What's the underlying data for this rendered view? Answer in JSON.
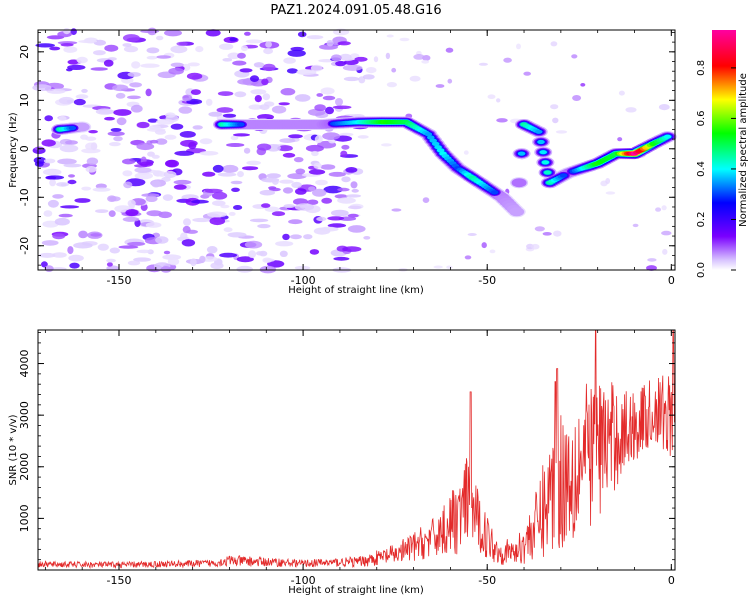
{
  "title": "PAZ1.2024.091.05.48.G16",
  "chart_data": [
    {
      "type": "heatmap",
      "xlabel": "Height of straight line (km)",
      "ylabel": "Frequency (Hz)",
      "xlim": [
        -172,
        1
      ],
      "ylim": [
        -25,
        24.5
      ],
      "xticks": [
        -150,
        -100,
        -50,
        0
      ],
      "yticks": [
        -20,
        -10,
        0,
        10,
        20
      ],
      "colorbar": {
        "label": "Normalized spectral amplitude",
        "range": [
          0.0,
          0.95
        ],
        "ticks": [
          0.0,
          0.2,
          0.4,
          0.6,
          0.8
        ],
        "colormap": [
          "#ffffff",
          "#7a00ff",
          "#0000ff",
          "#00ffff",
          "#00ff00",
          "#ffff00",
          "#ff0000",
          "#ff00ff"
        ]
      },
      "ridge": [
        {
          "x": -166,
          "y": 4,
          "v": 0.45
        },
        {
          "x": -160,
          "y": 4.5,
          "v": 0.2
        },
        {
          "x": -122,
          "y": 5,
          "v": 0.45
        },
        {
          "x": -115,
          "y": 5,
          "v": 0.25
        },
        {
          "x": -105,
          "y": 5,
          "v": 0.25
        },
        {
          "x": -95,
          "y": 5,
          "v": 0.25
        },
        {
          "x": -85,
          "y": 5.5,
          "v": 0.4
        },
        {
          "x": -78,
          "y": 5.5,
          "v": 0.55
        },
        {
          "x": -72,
          "y": 5.5,
          "v": 0.5
        },
        {
          "x": -66,
          "y": 3,
          "v": 0.35
        },
        {
          "x": -62,
          "y": -1,
          "v": 0.4
        },
        {
          "x": -58,
          "y": -4,
          "v": 0.3
        },
        {
          "x": -54,
          "y": -6,
          "v": 0.45
        },
        {
          "x": -50,
          "y": -8,
          "v": 0.35
        },
        {
          "x": -46,
          "y": -10,
          "v": 0.25
        },
        {
          "x": -42,
          "y": -13,
          "v": 0.2
        },
        {
          "x": -40,
          "y": 5,
          "v": 0.45
        },
        {
          "x": -36,
          "y": 3.5,
          "v": 0.35
        },
        {
          "x": -33,
          "y": -7,
          "v": 0.45
        },
        {
          "x": -28,
          "y": -5,
          "v": 0.25
        },
        {
          "x": -20,
          "y": -3,
          "v": 0.55
        },
        {
          "x": -15,
          "y": -1,
          "v": 0.5
        },
        {
          "x": -10,
          "y": -1,
          "v": 0.95
        },
        {
          "x": -5,
          "y": 1,
          "v": 0.55
        },
        {
          "x": -1,
          "y": 2.5,
          "v": 0.4
        }
      ]
    },
    {
      "type": "line",
      "xlabel": "Height of straight line (km)",
      "ylabel": "SNR (10 * v/v)",
      "xlim": [
        -172,
        1
      ],
      "ylim": [
        0,
        4650
      ],
      "xticks": [
        -150,
        -100,
        -50,
        0
      ],
      "yticks": [
        1000,
        2000,
        3000,
        4000
      ],
      "line_color": "#e32a2a",
      "series_envelope": [
        {
          "x": -172,
          "mean": 110,
          "amp": 60
        },
        {
          "x": -150,
          "mean": 100,
          "amp": 60
        },
        {
          "x": -125,
          "mean": 130,
          "amp": 70
        },
        {
          "x": -120,
          "mean": 180,
          "amp": 110
        },
        {
          "x": -100,
          "mean": 130,
          "amp": 70
        },
        {
          "x": -85,
          "mean": 160,
          "amp": 100
        },
        {
          "x": -75,
          "mean": 300,
          "amp": 200
        },
        {
          "x": -65,
          "mean": 600,
          "amp": 380
        },
        {
          "x": -58,
          "mean": 1000,
          "amp": 700
        },
        {
          "x": -55,
          "mean": 1300,
          "amp": 1000
        },
        {
          "x": -52,
          "mean": 850,
          "amp": 550
        },
        {
          "x": -47,
          "mean": 350,
          "amp": 250
        },
        {
          "x": -42,
          "mean": 350,
          "amp": 250
        },
        {
          "x": -37,
          "mean": 800,
          "amp": 650
        },
        {
          "x": -32,
          "mean": 1600,
          "amp": 1300
        },
        {
          "x": -26,
          "mean": 2000,
          "amp": 1500
        },
        {
          "x": -20,
          "mean": 2400,
          "amp": 1400
        },
        {
          "x": -12,
          "mean": 2700,
          "amp": 800
        },
        {
          "x": -5,
          "mean": 3050,
          "amp": 650
        },
        {
          "x": 1,
          "mean": 3000,
          "amp": 900
        }
      ],
      "peaks": [
        {
          "x": -54.5,
          "y": 3450
        },
        {
          "x": -31.5,
          "y": 3650
        },
        {
          "x": -20.5,
          "y": 4650
        },
        {
          "x": -31,
          "y": 3900
        },
        {
          "x": 0.5,
          "y": 4650
        }
      ]
    }
  ]
}
